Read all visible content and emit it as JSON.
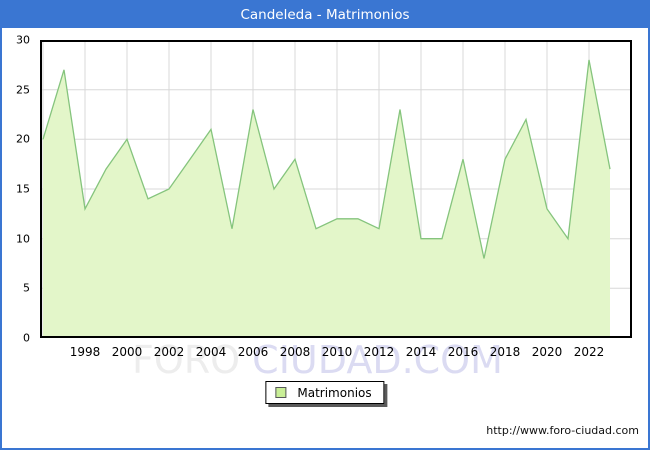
{
  "window": {
    "title": "Candeleda - Matrimonios"
  },
  "chart_data": {
    "type": "area",
    "title": "Candeleda - Matrimonios",
    "x": [
      1996,
      1997,
      1998,
      1999,
      2000,
      2001,
      2002,
      2003,
      2004,
      2005,
      2006,
      2007,
      2008,
      2009,
      2010,
      2011,
      2012,
      2013,
      2014,
      2015,
      2016,
      2017,
      2018,
      2019,
      2020,
      2021,
      2022,
      2023
    ],
    "series": [
      {
        "name": "Matrimonios",
        "values": [
          20,
          27,
          13,
          17,
          20,
          14,
          15,
          18,
          21,
          11,
          23,
          15,
          18,
          11,
          12,
          12,
          11,
          23,
          10,
          10,
          18,
          8,
          18,
          22,
          13,
          10,
          28,
          17
        ]
      }
    ],
    "xlabel": "",
    "ylabel": "",
    "ylim": [
      0,
      30
    ],
    "yticks": [
      0,
      5,
      10,
      15,
      20,
      25,
      30
    ],
    "xticks": [
      1998,
      2000,
      2002,
      2004,
      2006,
      2008,
      2010,
      2012,
      2014,
      2016,
      2018,
      2020,
      2022
    ],
    "grid": true,
    "legend_position": "bottom-center",
    "colors": {
      "accent": "#3a76d2",
      "area_fill": "#e3f6c9",
      "line": "#85c47d",
      "grid": "#d8d8d8",
      "plot_border": "#000000",
      "legend_swatch": "#c9ef97",
      "title_text": "#ffffff"
    }
  },
  "legend": {
    "label": "Matrimonios"
  },
  "watermark": {
    "part1": "FORO ",
    "part2": "CIUDAD.COM"
  },
  "footer": {
    "url": "http://www.foro-ciudad.com"
  }
}
